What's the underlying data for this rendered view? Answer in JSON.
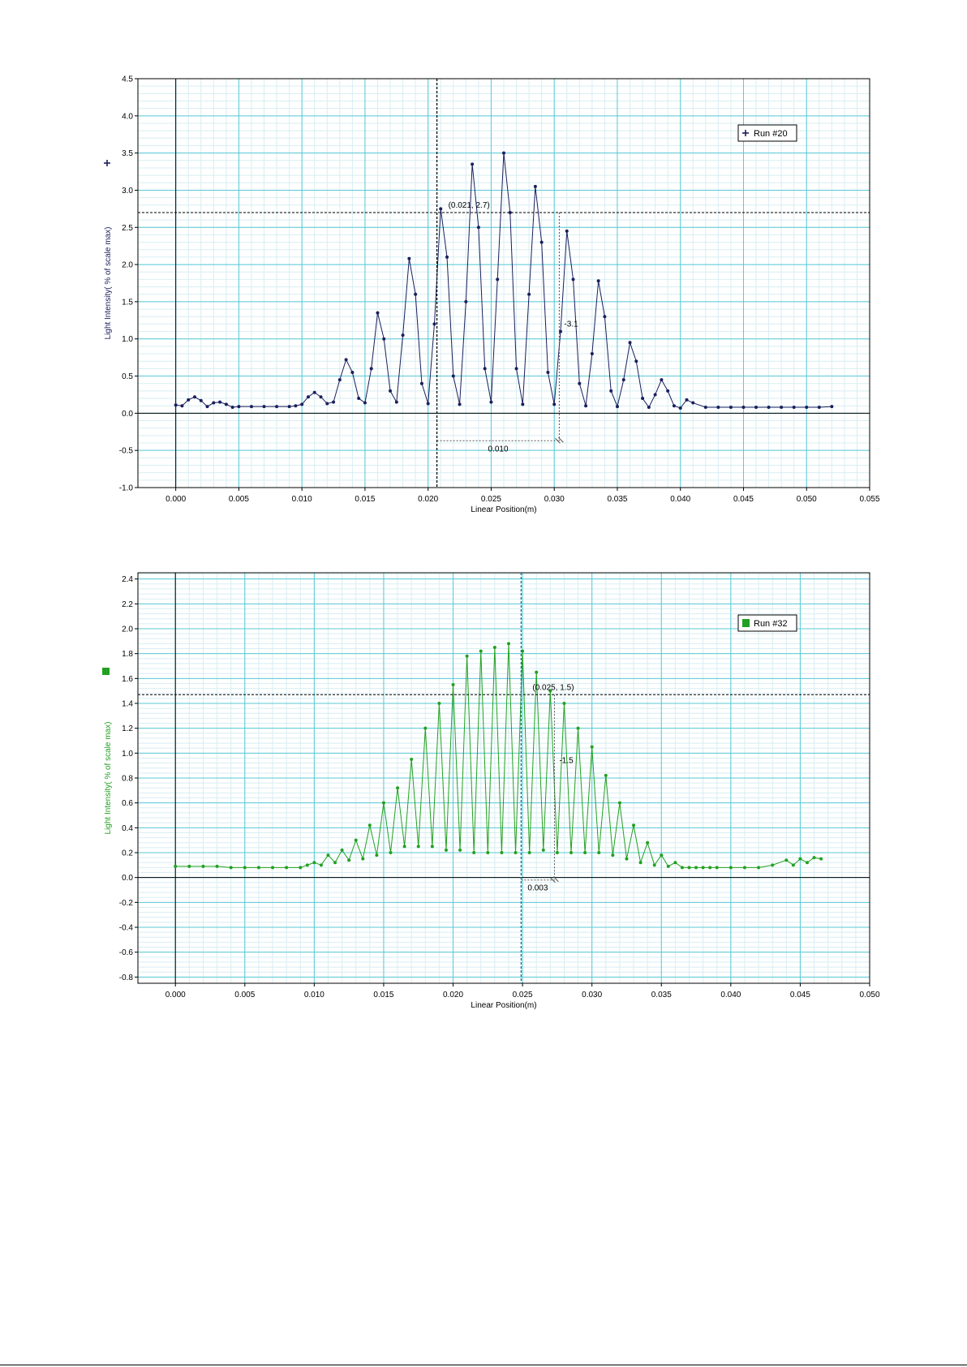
{
  "chart_data": [
    {
      "type": "line",
      "title": "",
      "xlabel": "Linear Position(m)",
      "ylabel": "Light Intensity( % of scale max)",
      "xlim": [
        -0.003,
        0.055
      ],
      "ylim": [
        -1.0,
        4.5
      ],
      "xticks": [
        "0.000",
        "0.005",
        "0.010",
        "0.015",
        "0.020",
        "0.025",
        "0.030",
        "0.035",
        "0.040",
        "0.045",
        "0.050",
        "0.055"
      ],
      "yticks": [
        "-1.0",
        "-0.5",
        "0.0",
        "0.5",
        "1.0",
        "1.5",
        "2.0",
        "2.5",
        "3.0",
        "3.5",
        "4.0",
        "4.5"
      ],
      "grid": true,
      "legend_position": "top-right",
      "color": "#1a1f5c",
      "series": [
        {
          "name": "Run #20",
          "x": [
            0.0,
            0.0005,
            0.001,
            0.0015,
            0.002,
            0.0025,
            0.003,
            0.0035,
            0.004,
            0.0045,
            0.005,
            0.006,
            0.007,
            0.008,
            0.009,
            0.0095,
            0.01,
            0.0105,
            0.011,
            0.0115,
            0.012,
            0.0125,
            0.013,
            0.0135,
            0.014,
            0.0145,
            0.015,
            0.0155,
            0.016,
            0.0165,
            0.017,
            0.0175,
            0.018,
            0.0185,
            0.019,
            0.0195,
            0.02,
            0.0205,
            0.021,
            0.0215,
            0.022,
            0.0225,
            0.023,
            0.0235,
            0.024,
            0.0245,
            0.025,
            0.0255,
            0.026,
            0.0265,
            0.027,
            0.0275,
            0.028,
            0.0285,
            0.029,
            0.0295,
            0.03,
            0.0305,
            0.031,
            0.0315,
            0.032,
            0.0325,
            0.033,
            0.0335,
            0.034,
            0.0345,
            0.035,
            0.0355,
            0.036,
            0.0365,
            0.037,
            0.0375,
            0.038,
            0.0385,
            0.039,
            0.0395,
            0.04,
            0.0405,
            0.041,
            0.042,
            0.043,
            0.044,
            0.045,
            0.046,
            0.047,
            0.048,
            0.049,
            0.05,
            0.051,
            0.052
          ],
          "y": [
            0.11,
            0.1,
            0.18,
            0.22,
            0.17,
            0.09,
            0.14,
            0.15,
            0.12,
            0.08,
            0.09,
            0.09,
            0.09,
            0.09,
            0.09,
            0.1,
            0.12,
            0.22,
            0.28,
            0.22,
            0.13,
            0.15,
            0.45,
            0.72,
            0.55,
            0.2,
            0.14,
            0.6,
            1.35,
            1.0,
            0.3,
            0.15,
            1.05,
            2.08,
            1.6,
            0.4,
            0.13,
            1.2,
            2.75,
            2.1,
            0.5,
            0.12,
            1.5,
            3.35,
            2.5,
            0.6,
            0.15,
            1.8,
            3.5,
            2.7,
            0.6,
            0.12,
            1.6,
            3.05,
            2.3,
            0.55,
            0.12,
            1.1,
            2.45,
            1.8,
            0.4,
            0.1,
            0.8,
            1.78,
            1.3,
            0.3,
            0.09,
            0.45,
            0.95,
            0.7,
            0.2,
            0.08,
            0.25,
            0.45,
            0.3,
            0.1,
            0.07,
            0.18,
            0.14,
            0.08,
            0.08,
            0.08,
            0.08,
            0.08,
            0.08,
            0.08,
            0.08,
            0.08,
            0.08,
            0.09
          ]
        }
      ],
      "annotations": {
        "cursor_readout": "(0.021, 2.7)",
        "cursor_x": 0.0207,
        "cursor_y": 2.7,
        "delta_x_label": "0.010",
        "delta_y_label": "-3.1",
        "delta_end_x": 0.0304
      }
    },
    {
      "type": "line",
      "title": "",
      "xlabel": "Linear Position(m)",
      "ylabel": "Light Intensity( % of scale max)",
      "xlim": [
        -0.0027,
        0.05
      ],
      "ylim": [
        -0.85,
        2.45
      ],
      "xticks": [
        "0.000",
        "0.005",
        "0.010",
        "0.015",
        "0.020",
        "0.025",
        "0.030",
        "0.035",
        "0.040",
        "0.045",
        "0.050"
      ],
      "yticks": [
        "-0.8",
        "-0.6",
        "-0.4",
        "-0.2",
        "0.0",
        "0.2",
        "0.4",
        "0.6",
        "0.8",
        "1.0",
        "1.2",
        "1.4",
        "1.6",
        "1.8",
        "2.0",
        "2.2",
        "2.4"
      ],
      "grid": true,
      "legend_position": "top-right",
      "color": "#22a021",
      "series": [
        {
          "name": "Run #32",
          "x": [
            0.0,
            0.001,
            0.002,
            0.003,
            0.004,
            0.005,
            0.006,
            0.007,
            0.008,
            0.009,
            0.0095,
            0.01,
            0.0105,
            0.011,
            0.0115,
            0.012,
            0.0125,
            0.013,
            0.0135,
            0.014,
            0.0145,
            0.015,
            0.0155,
            0.016,
            0.0165,
            0.017,
            0.0175,
            0.018,
            0.0185,
            0.019,
            0.0195,
            0.02,
            0.0205,
            0.021,
            0.0215,
            0.022,
            0.0225,
            0.023,
            0.0235,
            0.024,
            0.0245,
            0.025,
            0.0255,
            0.026,
            0.0265,
            0.027,
            0.0275,
            0.028,
            0.0285,
            0.029,
            0.0295,
            0.03,
            0.0305,
            0.031,
            0.0315,
            0.032,
            0.0325,
            0.033,
            0.0335,
            0.034,
            0.0345,
            0.035,
            0.0355,
            0.036,
            0.0365,
            0.037,
            0.0375,
            0.038,
            0.0385,
            0.039,
            0.04,
            0.041,
            0.042,
            0.043,
            0.044,
            0.0445,
            0.045,
            0.0455,
            0.046,
            0.0465
          ],
          "y": [
            0.09,
            0.09,
            0.09,
            0.09,
            0.08,
            0.08,
            0.08,
            0.08,
            0.08,
            0.08,
            0.1,
            0.12,
            0.1,
            0.18,
            0.12,
            0.22,
            0.14,
            0.3,
            0.15,
            0.42,
            0.18,
            0.6,
            0.2,
            0.72,
            0.25,
            0.95,
            0.25,
            1.2,
            0.25,
            1.4,
            0.22,
            1.55,
            0.22,
            1.78,
            0.2,
            1.82,
            0.2,
            1.85,
            0.2,
            1.88,
            0.2,
            1.82,
            0.2,
            1.65,
            0.22,
            1.5,
            0.2,
            1.4,
            0.2,
            1.2,
            0.2,
            1.05,
            0.2,
            0.82,
            0.18,
            0.6,
            0.15,
            0.42,
            0.12,
            0.28,
            0.1,
            0.18,
            0.09,
            0.12,
            0.08,
            0.08,
            0.08,
            0.08,
            0.08,
            0.08,
            0.08,
            0.08,
            0.08,
            0.1,
            0.14,
            0.1,
            0.15,
            0.12,
            0.16,
            0.15
          ]
        }
      ],
      "annotations": {
        "cursor_readout": "(0.025, 1.5)",
        "cursor_x": 0.0249,
        "cursor_y": 1.47,
        "delta_x_label": "0.003",
        "delta_y_label": "-1.5",
        "delta_end_x": 0.0273
      }
    }
  ]
}
